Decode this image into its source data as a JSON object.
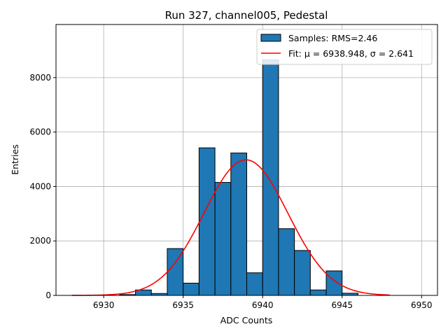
{
  "chart_data": {
    "type": "bar",
    "title": "Run 327, channel005, Pedestal",
    "xlabel": "ADC Counts",
    "ylabel": "Entries",
    "xlim": [
      6927,
      6951
    ],
    "ylim": [
      0,
      9950
    ],
    "xticks": [
      6930,
      6935,
      6940,
      6945,
      6950
    ],
    "yticks": [
      0,
      2000,
      4000,
      6000,
      8000
    ],
    "grid": true,
    "legend_position": "top-right",
    "histogram": {
      "name": "Samples: RMS=2.46",
      "color": "#1f77b4",
      "bin_width": 1,
      "bin_starts": [
        6931,
        6932,
        6933,
        6934,
        6935,
        6936,
        6937,
        6938,
        6939,
        6940,
        6941,
        6942,
        6943,
        6944,
        6945
      ],
      "counts": [
        30,
        200,
        70,
        1720,
        450,
        5420,
        4150,
        5230,
        830,
        8650,
        2450,
        1650,
        200,
        900,
        80
      ]
    },
    "fit": {
      "name": "Fit: μ = 6938.948, σ = 2.641",
      "color": "#ff0000",
      "mu": 6938.948,
      "sigma": 2.641,
      "amplitude": 4980,
      "x_range": [
        6928,
        6948
      ]
    }
  }
}
